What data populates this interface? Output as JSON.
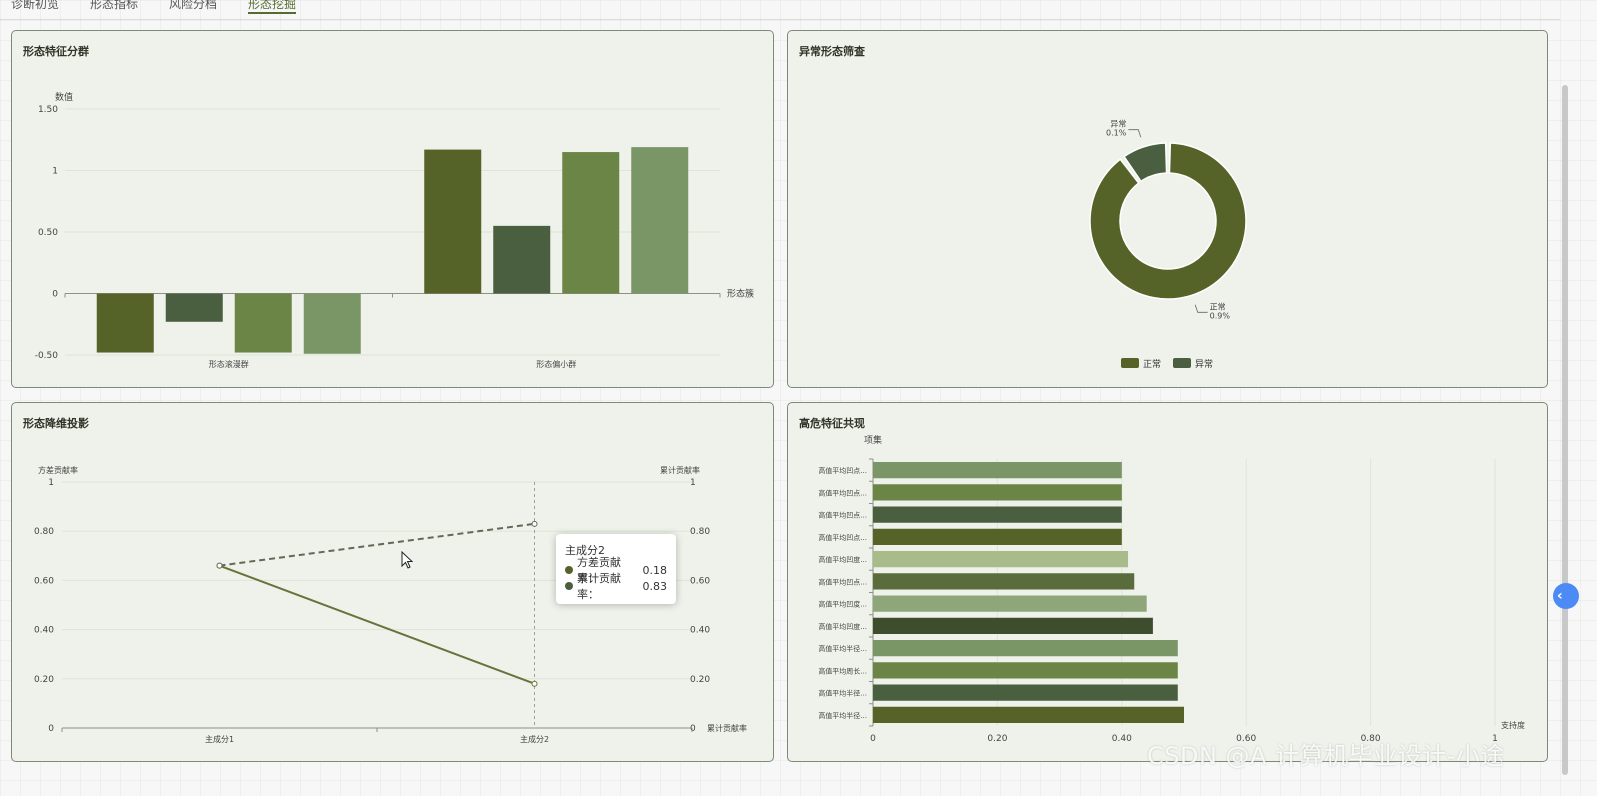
{
  "tabs": [
    "诊断初览",
    "形态指标",
    "风险分档",
    "形态挖掘"
  ],
  "active_tab": 3,
  "colors": {
    "c1": "#556328",
    "c2": "#4a5f40",
    "c3": "#6b8547",
    "c4": "#7a9566",
    "panel_bg": "#eef2ea",
    "border": "#7e8a78"
  },
  "panels": {
    "cluster": {
      "title": "形态特征分群"
    },
    "anomaly": {
      "title": "异常形态筛查"
    },
    "pca": {
      "title": "形态降维投影"
    },
    "cooccur": {
      "title": "高危特征共现"
    }
  },
  "tooltip": {
    "title": "主成分2",
    "rows": [
      {
        "label": "方差贡献率：",
        "value": "0.18"
      },
      {
        "label": "累计贡献率：",
        "value": "0.83"
      }
    ]
  },
  "watermark": "CSDN @A 计算机毕业设计-小途",
  "chart_data": [
    {
      "id": "cluster",
      "type": "bar",
      "title": "形态特征分群",
      "ylabel": "数值",
      "xlabel": "形态簇",
      "categories": [
        "形态滚漫群",
        "形态偏小群"
      ],
      "series": [
        {
          "values": [
            -0.48,
            1.17
          ]
        },
        {
          "values": [
            -0.23,
            0.55
          ]
        },
        {
          "values": [
            -0.48,
            1.15
          ]
        },
        {
          "values": [
            -0.49,
            1.19
          ]
        }
      ],
      "yticks": [
        "1.50",
        "1",
        "0.50",
        "0",
        "-0.50"
      ],
      "ylim": [
        -0.5,
        1.5
      ]
    },
    {
      "id": "anomaly",
      "type": "pie",
      "title": "异常形态筛查",
      "slices": [
        {
          "name": "正常",
          "value": 0.9,
          "label": "正常\n0.9%"
        },
        {
          "name": "异常",
          "value": 0.1,
          "label": "异常\n0.1%"
        }
      ],
      "legend": [
        "正常",
        "异常"
      ]
    },
    {
      "id": "pca",
      "type": "line",
      "title": "形态降维投影",
      "ylabel_left": "方差贡献率",
      "ylabel_right": "累计贡献率",
      "xlabel_right": "累计贡献率",
      "categories": [
        "主成分1",
        "主成分2"
      ],
      "series": [
        {
          "name": "方差贡献率",
          "values": [
            0.66,
            0.18
          ]
        },
        {
          "name": "累计贡献率",
          "values": [
            0.66,
            0.83
          ]
        }
      ],
      "yticks": [
        "1",
        "0.80",
        "0.60",
        "0.40",
        "0.20",
        "0"
      ],
      "ylim": [
        0,
        1
      ]
    },
    {
      "id": "cooccur",
      "type": "bar",
      "orientation": "horizontal",
      "title": "高危特征共现",
      "ylabel": "项集",
      "xlabel": "支持度",
      "categories": [
        "高值平均凹点...",
        "高值平均凹点...",
        "高值平均凹点...",
        "高值平均凹点...",
        "高值平均凹度...",
        "高值平均凹点...",
        "高值平均凹度...",
        "高值平均凹度...",
        "高值平均半径...",
        "高值平均周长...",
        "高值平均半径...",
        "高值平均半径..."
      ],
      "values": [
        0.4,
        0.4,
        0.4,
        0.4,
        0.41,
        0.42,
        0.44,
        0.45,
        0.49,
        0.49,
        0.49,
        0.5
      ],
      "xticks": [
        "0",
        "0.20",
        "0.40",
        "0.60",
        "0.80",
        "1"
      ],
      "xlim": [
        0,
        1
      ]
    }
  ]
}
